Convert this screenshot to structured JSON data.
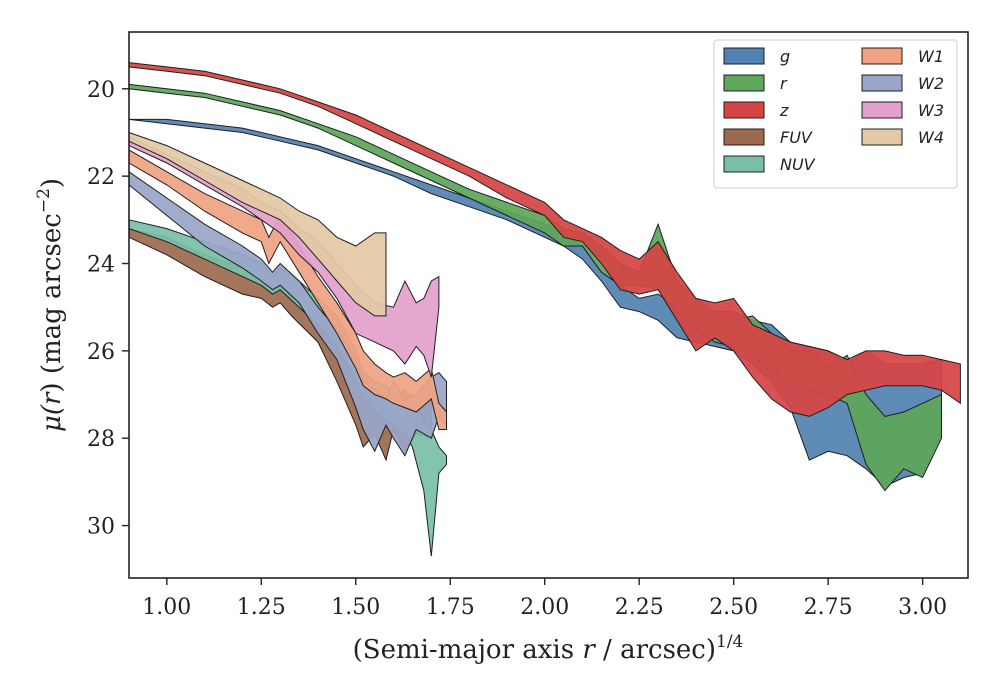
{
  "chart_data": {
    "type": "area",
    "xlabel": "(Semi-major axis r / arcsec)^{1/4}",
    "xlabel_parts": {
      "before": "(Semi-major axis ",
      "var": "r",
      "middle": " / arcsec)",
      "sup": "1/4"
    },
    "ylabel": "μ(r) (mag arcsec^-2)",
    "ylabel_parts": {
      "mu": "μ(",
      "var": "r",
      "after": ") (mag arcsec",
      "sup": "−2",
      "close": ")"
    },
    "xlim": [
      0.9,
      3.12
    ],
    "ylim": [
      31.2,
      18.7
    ],
    "y_inverted": true,
    "xticks": [
      1.0,
      1.25,
      1.5,
      1.75,
      2.0,
      2.25,
      2.5,
      2.75,
      3.0
    ],
    "xtick_labels": [
      "1.00",
      "1.25",
      "1.50",
      "1.75",
      "2.00",
      "2.25",
      "2.50",
      "2.75",
      "3.00"
    ],
    "yticks": [
      20,
      22,
      24,
      26,
      28,
      30
    ],
    "ytick_labels": [
      "20",
      "22",
      "24",
      "26",
      "28",
      "30"
    ],
    "grid": false,
    "legend_position": "top-right",
    "legend_columns": 2,
    "series": [
      {
        "name": "FUV",
        "color": "#9c6a4e",
        "x": [
          0.9,
          1.0,
          1.1,
          1.2,
          1.25,
          1.28,
          1.3,
          1.33,
          1.4,
          1.45,
          1.5,
          1.52,
          1.55,
          1.58,
          1.6,
          1.63,
          1.66,
          1.7
        ],
        "bright": [
          23.2,
          23.4,
          23.8,
          24.1,
          24.3,
          24.6,
          24.4,
          24.7,
          25.3,
          25.9,
          26.7,
          26.9,
          27.0,
          26.8,
          27.1,
          26.9,
          27.2,
          27.0
        ],
        "faint": [
          23.4,
          23.8,
          24.3,
          24.7,
          24.8,
          25.0,
          24.9,
          25.2,
          25.8,
          26.7,
          27.7,
          28.2,
          27.9,
          28.5,
          27.8,
          28.3,
          27.9,
          28.0
        ]
      },
      {
        "name": "NUV",
        "color": "#7abfa8",
        "x": [
          0.9,
          1.0,
          1.1,
          1.2,
          1.25,
          1.28,
          1.3,
          1.35,
          1.4,
          1.45,
          1.5,
          1.52,
          1.55,
          1.58,
          1.6,
          1.63,
          1.65,
          1.68,
          1.7,
          1.72,
          1.74
        ],
        "bright": [
          23.0,
          23.2,
          23.5,
          23.8,
          24.0,
          24.3,
          24.1,
          24.4,
          24.8,
          25.2,
          26.0,
          26.5,
          26.7,
          26.8,
          27.0,
          27.1,
          27.0,
          27.6,
          27.8,
          28.2,
          28.4
        ],
        "faint": [
          23.2,
          23.5,
          23.9,
          24.3,
          24.5,
          24.7,
          24.6,
          25.0,
          25.4,
          25.9,
          26.7,
          27.1,
          27.4,
          27.6,
          27.7,
          27.9,
          28.2,
          29.2,
          30.7,
          28.8,
          28.6
        ]
      },
      {
        "name": "W2",
        "color": "#9aa6c8",
        "x": [
          0.9,
          1.0,
          1.1,
          1.2,
          1.25,
          1.28,
          1.3,
          1.35,
          1.4,
          1.45,
          1.5,
          1.52,
          1.55,
          1.58,
          1.6,
          1.63,
          1.66,
          1.7,
          1.72,
          1.74
        ],
        "bright": [
          21.9,
          22.5,
          23.1,
          23.6,
          23.9,
          24.2,
          24.0,
          24.4,
          25.0,
          25.5,
          26.2,
          26.7,
          26.9,
          27.1,
          26.7,
          27.1,
          27.0,
          26.6,
          26.5,
          26.7
        ],
        "faint": [
          22.2,
          22.9,
          23.6,
          24.1,
          24.4,
          24.6,
          24.5,
          24.9,
          25.6,
          26.2,
          27.3,
          27.8,
          28.3,
          27.7,
          28.0,
          28.4,
          27.8,
          28.0,
          27.5,
          27.7
        ]
      },
      {
        "name": "W1",
        "color": "#f0a282",
        "x": [
          0.9,
          1.0,
          1.1,
          1.2,
          1.25,
          1.27,
          1.3,
          1.35,
          1.4,
          1.45,
          1.5,
          1.52,
          1.55,
          1.58,
          1.6,
          1.63,
          1.66,
          1.7,
          1.72,
          1.74
        ],
        "bright": [
          21.4,
          21.9,
          22.4,
          22.8,
          23.0,
          23.4,
          22.9,
          23.6,
          24.3,
          24.9,
          25.6,
          26.0,
          26.3,
          26.5,
          26.6,
          26.5,
          26.7,
          26.4,
          27.2,
          27.4
        ],
        "faint": [
          21.7,
          22.2,
          22.8,
          23.3,
          23.5,
          24.0,
          23.5,
          24.2,
          24.9,
          25.6,
          26.4,
          26.8,
          27.0,
          27.1,
          27.2,
          27.3,
          27.4,
          27.1,
          27.8,
          27.8
        ]
      },
      {
        "name": "W3",
        "color": "#e3a0cc",
        "x": [
          0.9,
          1.0,
          1.1,
          1.2,
          1.25,
          1.3,
          1.35,
          1.4,
          1.45,
          1.5,
          1.55,
          1.6,
          1.63,
          1.66,
          1.68,
          1.7,
          1.72
        ],
        "bright": [
          21.1,
          21.5,
          21.9,
          22.3,
          22.6,
          22.8,
          23.2,
          23.5,
          24.0,
          24.5,
          24.9,
          25.0,
          24.4,
          24.9,
          24.8,
          24.4,
          24.3
        ],
        "faint": [
          21.3,
          21.7,
          22.2,
          22.7,
          23.0,
          23.3,
          23.8,
          24.2,
          24.8,
          25.6,
          25.8,
          26.0,
          26.3,
          25.9,
          26.1,
          26.6,
          25.0
        ]
      },
      {
        "name": "W4",
        "color": "#e3c9a5",
        "x": [
          0.9,
          1.0,
          1.1,
          1.2,
          1.25,
          1.3,
          1.35,
          1.4,
          1.45,
          1.5,
          1.55,
          1.58
        ],
        "bright": [
          21.0,
          21.3,
          21.7,
          22.1,
          22.3,
          22.5,
          22.8,
          23.0,
          23.4,
          23.6,
          23.3,
          23.3
        ],
        "faint": [
          21.2,
          21.6,
          22.1,
          22.6,
          22.8,
          23.0,
          23.4,
          23.9,
          24.4,
          24.9,
          25.2,
          25.2
        ]
      },
      {
        "name": "g",
        "color": "#5382b2",
        "x": [
          0.9,
          1.0,
          1.1,
          1.2,
          1.3,
          1.4,
          1.5,
          1.6,
          1.7,
          1.8,
          1.9,
          2.0,
          2.05,
          2.1,
          2.15,
          2.2,
          2.25,
          2.3,
          2.35,
          2.4,
          2.45,
          2.5,
          2.55,
          2.6,
          2.65,
          2.7,
          2.75,
          2.8,
          2.85,
          2.9,
          2.95,
          3.0,
          3.05
        ],
        "bright": [
          20.7,
          20.7,
          20.8,
          20.9,
          21.1,
          21.3,
          21.6,
          21.9,
          22.2,
          22.5,
          22.8,
          23.1,
          23.3,
          23.6,
          24.2,
          24.5,
          24.8,
          24.7,
          25.0,
          25.0,
          25.1,
          25.1,
          25.3,
          25.4,
          25.8,
          25.9,
          26.0,
          26.3,
          26.0,
          26.3,
          26.3,
          26.3,
          26.2
        ],
        "faint": [
          20.7,
          20.8,
          20.9,
          21.0,
          21.2,
          21.4,
          21.7,
          22.0,
          22.4,
          22.7,
          23.0,
          23.4,
          23.6,
          23.9,
          24.4,
          25.0,
          25.1,
          25.3,
          25.7,
          25.8,
          25.9,
          26.0,
          26.3,
          26.7,
          27.3,
          28.5,
          28.3,
          28.4,
          28.7,
          29.1,
          28.9,
          28.8,
          27.9
        ]
      },
      {
        "name": "r",
        "color": "#5ea65a",
        "x": [
          0.9,
          1.0,
          1.1,
          1.2,
          1.3,
          1.4,
          1.5,
          1.6,
          1.7,
          1.8,
          1.9,
          2.0,
          2.05,
          2.1,
          2.15,
          2.2,
          2.25,
          2.3,
          2.35,
          2.4,
          2.45,
          2.5,
          2.55,
          2.6,
          2.65,
          2.7,
          2.75,
          2.8,
          2.85,
          2.9,
          2.95,
          3.0,
          3.05
        ],
        "bright": [
          19.9,
          20.0,
          20.1,
          20.3,
          20.5,
          20.8,
          21.1,
          21.5,
          21.9,
          22.3,
          22.6,
          22.9,
          23.2,
          23.3,
          23.6,
          24.0,
          24.2,
          23.1,
          24.4,
          24.8,
          25.1,
          25.3,
          25.2,
          25.6,
          26.0,
          26.0,
          26.4,
          26.1,
          27.0,
          27.5,
          27.4,
          27.2,
          27.0
        ],
        "faint": [
          20.0,
          20.1,
          20.2,
          20.4,
          20.6,
          20.9,
          21.3,
          21.7,
          22.1,
          22.5,
          22.9,
          23.3,
          23.6,
          23.6,
          24.2,
          24.5,
          24.5,
          24.6,
          25.1,
          25.5,
          25.8,
          25.9,
          26.1,
          26.5,
          26.7,
          26.9,
          27.0,
          27.2,
          28.6,
          29.2,
          28.7,
          28.9,
          28.0
        ]
      },
      {
        "name": "z",
        "color": "#d64545",
        "x": [
          0.9,
          1.0,
          1.1,
          1.2,
          1.3,
          1.4,
          1.5,
          1.6,
          1.7,
          1.8,
          1.9,
          2.0,
          2.05,
          2.1,
          2.15,
          2.2,
          2.25,
          2.3,
          2.35,
          2.4,
          2.45,
          2.5,
          2.55,
          2.6,
          2.65,
          2.7,
          2.75,
          2.8,
          2.85,
          2.9,
          2.95,
          3.0,
          3.05,
          3.1
        ],
        "bright": [
          19.4,
          19.5,
          19.6,
          19.8,
          20.0,
          20.3,
          20.6,
          21.0,
          21.4,
          21.8,
          22.2,
          22.6,
          23.0,
          23.2,
          23.4,
          23.7,
          23.9,
          23.5,
          24.2,
          24.8,
          24.9,
          24.8,
          25.4,
          25.6,
          25.8,
          25.9,
          26.0,
          26.2,
          26.0,
          26.0,
          26.1,
          26.1,
          26.2,
          26.3
        ],
        "faint": [
          19.5,
          19.6,
          19.7,
          19.9,
          20.1,
          20.4,
          20.8,
          21.2,
          21.6,
          22.0,
          22.5,
          22.9,
          23.4,
          23.5,
          24.0,
          24.6,
          24.7,
          24.6,
          25.3,
          26.0,
          25.7,
          26.0,
          26.6,
          27.1,
          27.4,
          27.5,
          27.3,
          27.0,
          26.9,
          26.8,
          26.8,
          26.8,
          26.9,
          27.2
        ]
      }
    ],
    "legend_order": [
      "g",
      "r",
      "z",
      "FUV",
      "NUV",
      "W1",
      "W2",
      "W3",
      "W4"
    ]
  }
}
